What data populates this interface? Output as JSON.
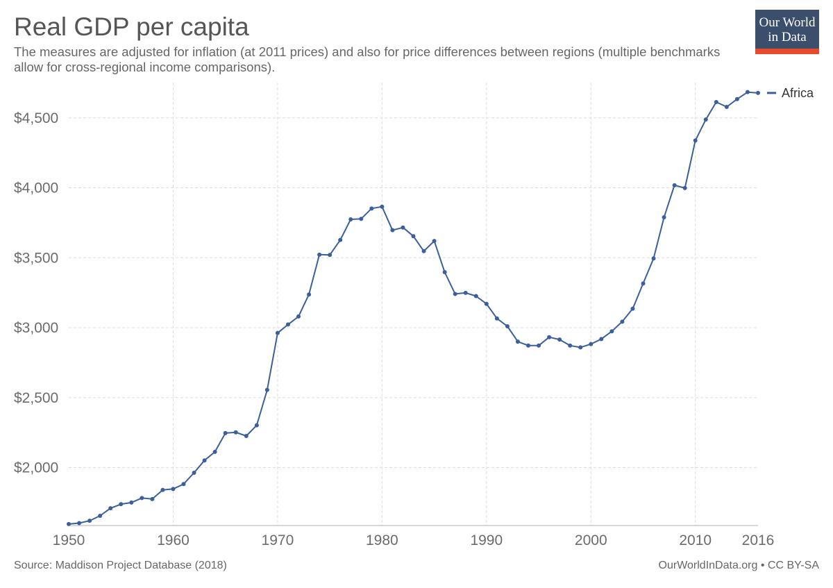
{
  "header": {
    "title": "Real GDP per capita",
    "subtitle": "The measures are adjusted for inflation (at 2011 prices) and also for price differences between regions (multiple benchmarks allow for cross-regional income comparisons)."
  },
  "logo": {
    "line1": "Our World",
    "line2": "in Data"
  },
  "footer": {
    "source": "Source: Maddison Project Database (2018)",
    "credit": "OurWorldInData.org • CC BY-SA"
  },
  "colors": {
    "series": "#3b5f9c",
    "grid": "#dddddd",
    "logo_bg": "#3b4e6b",
    "logo_bar": "#e64a2e"
  },
  "chart_data": {
    "type": "line",
    "title": "Real GDP per capita",
    "xlabel": "",
    "ylabel": "",
    "xlim": [
      1950,
      2016
    ],
    "ylim": [
      1600,
      4750
    ],
    "x_ticks": [
      1950,
      1960,
      1970,
      1980,
      1990,
      2000,
      2010,
      2016
    ],
    "x_tick_labels": [
      "1950",
      "1960",
      "1970",
      "1980",
      "1990",
      "2000",
      "2010",
      "2016"
    ],
    "y_ticks": [
      2000,
      2500,
      3000,
      3500,
      4000,
      4500
    ],
    "y_tick_labels": [
      "$2,000",
      "$2,500",
      "$3,000",
      "$3,500",
      "$4,000",
      "$4,500"
    ],
    "grid": true,
    "legend": "right",
    "series": [
      {
        "name": "Africa",
        "x": [
          1950,
          1951,
          1952,
          1953,
          1954,
          1955,
          1956,
          1957,
          1958,
          1959,
          1960,
          1961,
          1962,
          1963,
          1964,
          1965,
          1966,
          1967,
          1968,
          1969,
          1970,
          1971,
          1972,
          1973,
          1974,
          1975,
          1976,
          1977,
          1978,
          1979,
          1980,
          1981,
          1982,
          1983,
          1984,
          1985,
          1986,
          1987,
          1988,
          1989,
          1990,
          1991,
          1992,
          1993,
          1994,
          1995,
          1996,
          1997,
          1998,
          1999,
          2000,
          2001,
          2002,
          2003,
          2004,
          2005,
          2006,
          2007,
          2008,
          2009,
          2010,
          2011,
          2012,
          2013,
          2014,
          2015,
          2016
        ],
        "values": [
          1596,
          1603,
          1620,
          1655,
          1709,
          1738,
          1750,
          1782,
          1775,
          1840,
          1847,
          1882,
          1963,
          2051,
          2112,
          2246,
          2252,
          2226,
          2302,
          2555,
          2962,
          3023,
          3080,
          3237,
          3522,
          3520,
          3627,
          3774,
          3778,
          3852,
          3865,
          3697,
          3716,
          3654,
          3547,
          3620,
          3397,
          3241,
          3249,
          3226,
          3170,
          3066,
          3010,
          2900,
          2872,
          2872,
          2932,
          2915,
          2872,
          2859,
          2883,
          2919,
          2974,
          3043,
          3136,
          3316,
          3495,
          3789,
          4018,
          3998,
          4338,
          4488,
          4613,
          4578,
          4634,
          4684,
          4678
        ]
      }
    ]
  }
}
